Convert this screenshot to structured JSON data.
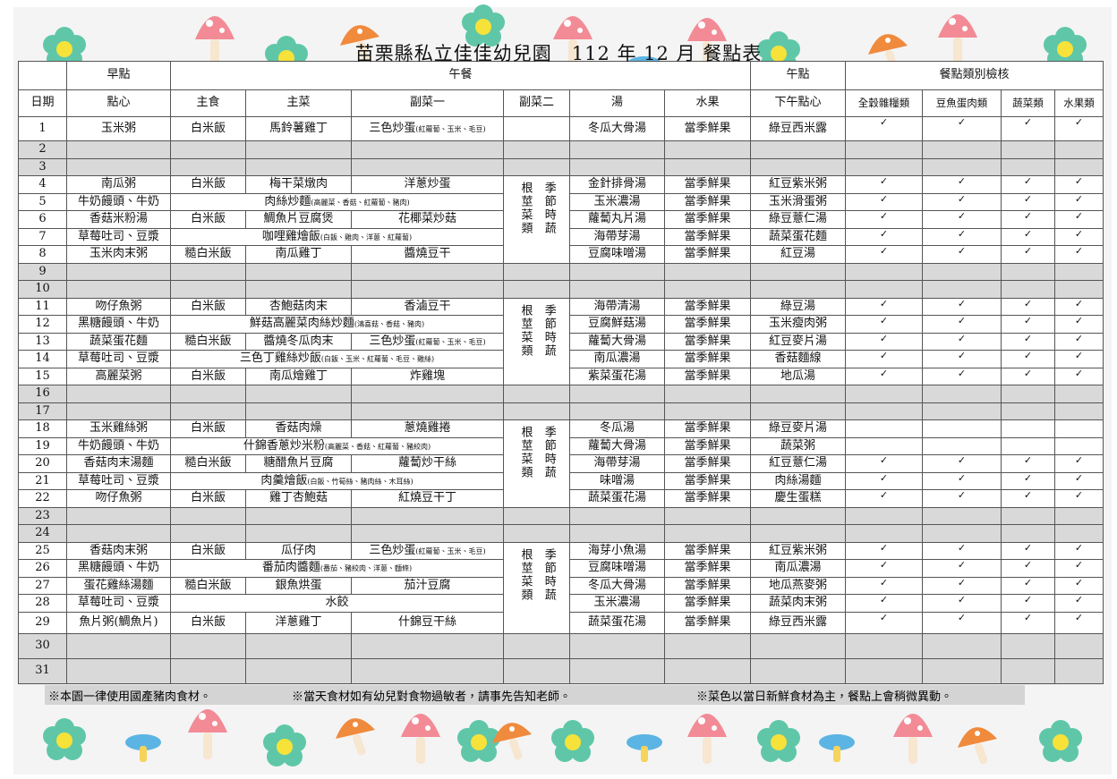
{
  "header": {
    "title": "苗栗縣私立佳佳幼兒園　112 年 12 月  餐點表"
  },
  "table": {
    "groups": [
      "早點",
      "午餐",
      "午點",
      "餐點類別檢核"
    ],
    "columns": [
      "日期",
      "點心",
      "主食",
      "主菜",
      "副菜一",
      "副菜二",
      "湯",
      "水果",
      "下午點心",
      "全穀雜糧類",
      "豆魚蛋肉類",
      "蔬菜類",
      "水果類"
    ],
    "rows": [
      {
        "date": "1",
        "snack": "玉米粥",
        "staple": "白米飯",
        "main": "馬鈴薯雞丁",
        "side1": "三色炒蛋",
        "side1_note": "(紅蘿蔔、玉米、毛豆)",
        "soup": "冬瓜大骨湯",
        "fruit": "當季鮮果",
        "afternoon": "綠豆西米露",
        "checks": [
          "✓",
          "✓",
          "✓",
          "✓"
        ]
      },
      {
        "date": "2"
      },
      {
        "date": "3"
      },
      {
        "date": "4",
        "snack": "南瓜粥",
        "staple": "白米飯",
        "main": "梅干菜燉肉",
        "side1": "洋蔥炒蛋",
        "side2": [
          "根莖菜類",
          "季節時蔬"
        ],
        "soup": "金針排骨湯",
        "fruit": "當季鮮果",
        "afternoon": "紅豆紫米粥",
        "checks": [
          "✓",
          "✓",
          "✓",
          "✓"
        ]
      },
      {
        "date": "5",
        "snack": "牛奶饅頭、牛奶",
        "lunch": "肉絲炒麵",
        "lunch_note": "(高麗菜、香菇、紅蘿蔔、豬肉)",
        "soup": "玉米濃湯",
        "fruit": "當季鮮果",
        "afternoon": "玉米滑蛋粥",
        "checks": [
          "✓",
          "✓",
          "✓",
          "✓"
        ]
      },
      {
        "date": "6",
        "snack": "香菇米粉湯",
        "staple": "白米飯",
        "main": "鯛魚片豆腐煲",
        "side1": "花椰菜炒菇",
        "soup": "蘿蔔丸片湯",
        "fruit": "當季鮮果",
        "afternoon": "綠豆薏仁湯",
        "checks": [
          "✓",
          "✓",
          "✓",
          "✓"
        ]
      },
      {
        "date": "7",
        "snack": "草莓吐司、豆漿",
        "lunch": "咖哩雞燴飯",
        "lunch_note": "(白飯、雞肉、洋蔥、紅蘿蔔)",
        "soup": "海帶芽湯",
        "fruit": "當季鮮果",
        "afternoon": "蔬菜蛋花麵",
        "checks": [
          "✓",
          "✓",
          "✓",
          "✓"
        ]
      },
      {
        "date": "8",
        "snack": "玉米肉末粥",
        "staple": "糙白米飯",
        "main": "南瓜雞丁",
        "side1": "醬燒豆干",
        "soup": "豆腐味噌湯",
        "fruit": "當季鮮果",
        "afternoon": "紅豆湯",
        "checks": [
          "✓",
          "✓",
          "✓",
          "✓"
        ]
      },
      {
        "date": "9"
      },
      {
        "date": "10"
      },
      {
        "date": "11",
        "snack": "吻仔魚粥",
        "staple": "白米飯",
        "main": "杏鮑菇肉末",
        "side1": "香滷豆干",
        "side2": [
          "根莖菜類",
          "季節時蔬"
        ],
        "soup": "海帶清湯",
        "fruit": "當季鮮果",
        "afternoon": "綠豆湯",
        "checks": [
          "✓",
          "✓",
          "✓",
          "✓"
        ]
      },
      {
        "date": "12",
        "snack": "黑糖饅頭、牛奶",
        "lunch": "鮮菇高麗菜肉絲炒麵",
        "lunch_note": "(鴻喜菇、香菇、豬肉)",
        "soup": "豆腐鮮菇湯",
        "fruit": "當季鮮果",
        "afternoon": "玉米瘦肉粥",
        "checks": [
          "✓",
          "✓",
          "✓",
          "✓"
        ]
      },
      {
        "date": "13",
        "snack": "蔬菜蛋花麵",
        "staple": "糙白米飯",
        "main": "醬燒冬瓜肉末",
        "side1": "三色炒蛋",
        "side1_note": "(紅蘿蔔、玉米、毛豆)",
        "soup": "蘿蔔大骨湯",
        "fruit": "當季鮮果",
        "afternoon": "紅豆麥片湯",
        "checks": [
          "✓",
          "✓",
          "✓",
          "✓"
        ]
      },
      {
        "date": "14",
        "snack": "草莓吐司、豆漿",
        "lunch": "三色丁雞絲炒飯",
        "lunch_note": "(白飯、玉米、紅蘿蔔、毛豆、雞絲)",
        "soup": "南瓜濃湯",
        "fruit": "當季鮮果",
        "afternoon": "香菇麵線",
        "checks": [
          "✓",
          "✓",
          "✓",
          "✓"
        ]
      },
      {
        "date": "15",
        "snack": "高麗菜粥",
        "staple": "白米飯",
        "main": "南瓜燴雞丁",
        "side1": "炸雞塊",
        "soup": "紫菜蛋花湯",
        "fruit": "當季鮮果",
        "afternoon": "地瓜湯",
        "checks": [
          "✓",
          "✓",
          "✓",
          "✓"
        ]
      },
      {
        "date": "16"
      },
      {
        "date": "17"
      },
      {
        "date": "18",
        "snack": "玉米雞絲粥",
        "staple": "白米飯",
        "main": "香菇肉燥",
        "side1": "蔥燒雞捲",
        "side2": [
          "根莖菜類",
          "季節時蔬"
        ],
        "soup": "冬瓜湯",
        "fruit": "當季鮮果",
        "afternoon": "綠豆麥片湯"
      },
      {
        "date": "19",
        "snack": "牛奶饅頭、牛奶",
        "lunch": "什錦香蔥炒米粉",
        "lunch_note": "(高麗菜、香菇、紅蘿蔔、豬絞肉)",
        "soup": "蘿蔔大骨湯",
        "fruit": "當季鮮果",
        "afternoon": "蔬菜粥"
      },
      {
        "date": "20",
        "snack": "香菇肉末湯麵",
        "staple": "糙白米飯",
        "main": "糖醋魚片豆腐",
        "side1": "蘿蔔炒干絲",
        "soup": "海帶芽湯",
        "fruit": "當季鮮果",
        "afternoon": "紅豆薏仁湯",
        "checks": [
          "✓",
          "✓",
          "✓",
          "✓"
        ]
      },
      {
        "date": "21",
        "snack": "草莓吐司、豆漿",
        "lunch": "肉羹燴飯",
        "lunch_note": "(白飯、竹筍絲、豬肉絲、木耳絲)",
        "soup": "味噌湯",
        "fruit": "當季鮮果",
        "afternoon": "肉絲湯麵",
        "checks": [
          "✓",
          "✓",
          "✓",
          "✓"
        ]
      },
      {
        "date": "22",
        "snack": "吻仔魚粥",
        "staple": "白米飯",
        "main": "雞丁杏鮑菇",
        "side1": "紅燒豆干丁",
        "soup": "蔬菜蛋花湯",
        "fruit": "當季鮮果",
        "afternoon": "慶生蛋糕",
        "checks": [
          "✓",
          "✓",
          "✓",
          "✓"
        ]
      },
      {
        "date": "23"
      },
      {
        "date": "24"
      },
      {
        "date": "25",
        "snack": "香菇肉末粥",
        "staple": "白米飯",
        "main": "瓜仔肉",
        "side1": "三色炒蛋",
        "side1_note": "(紅蘿蔔、玉米、毛豆)",
        "side2": [
          "根莖菜類",
          "季節時蔬"
        ],
        "soup": "海芽小魚湯",
        "fruit": "當季鮮果",
        "afternoon": "紅豆紫米粥",
        "checks": [
          "✓",
          "✓",
          "✓",
          "✓"
        ]
      },
      {
        "date": "26",
        "snack": "黑糖饅頭、牛奶",
        "lunch": "番茄肉醬麵",
        "lunch_note": "(番茄、豬絞肉、洋蔥、麵條)",
        "soup": "豆腐味噌湯",
        "fruit": "當季鮮果",
        "afternoon": "南瓜濃湯",
        "checks": [
          "✓",
          "✓",
          "✓",
          "✓"
        ]
      },
      {
        "date": "27",
        "snack": "蛋花雞絲湯麵",
        "staple": "糙白米飯",
        "main": "銀魚烘蛋",
        "side1": "茄汁豆腐",
        "soup": "冬瓜大骨湯",
        "fruit": "當季鮮果",
        "afternoon": "地瓜燕麥粥",
        "checks": [
          "✓",
          "✓",
          "✓",
          "✓"
        ]
      },
      {
        "date": "28",
        "snack": "草莓吐司、豆漿",
        "lunch": "水餃",
        "soup": "玉米濃湯",
        "fruit": "當季鮮果",
        "afternoon": "蔬菜肉末粥",
        "checks": [
          "✓",
          "✓",
          "✓",
          "✓"
        ]
      },
      {
        "date": "29",
        "snack": "魚片粥(鯛魚片)",
        "staple": "白米飯",
        "main": "洋蔥雞丁",
        "side1": "什錦豆干絲",
        "soup": "蔬菜蛋花湯",
        "fruit": "當季鮮果",
        "afternoon": "綠豆西米露",
        "checks": [
          "✓",
          "✓",
          "✓",
          "✓"
        ]
      },
      {
        "date": "30"
      },
      {
        "date": "31"
      }
    ]
  },
  "footer": {
    "notes": [
      "※本園一律使用國產豬肉食材。",
      "※當天食材如有幼兒對食物過敏者，請事先告知老師。",
      "※菜色以當日新鮮食材為主，餐點上會稍微異動。"
    ]
  }
}
